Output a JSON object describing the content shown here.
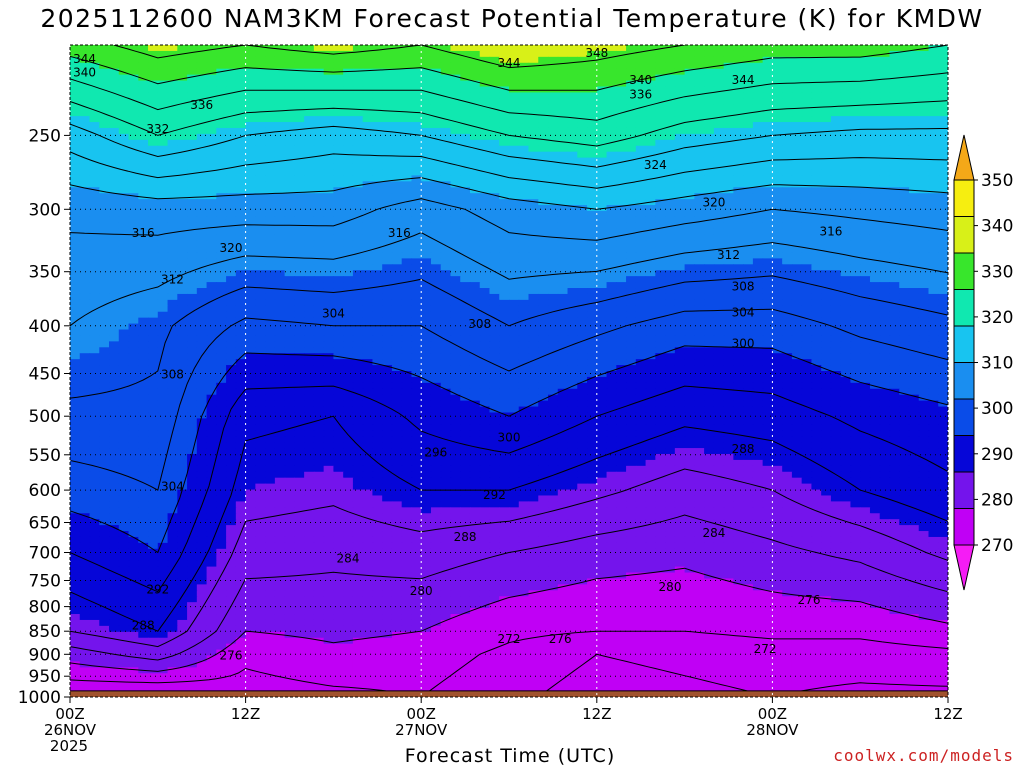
{
  "chart_data": {
    "type": "heatmap",
    "title": "2025112600 NAM3KM Forecast Potential Temperature (K) for KMDW",
    "xlabel": "Forecast Time (UTC)",
    "ylabel": "",
    "y_scale": "log-pressure",
    "y_axis_reversed": true,
    "ylim": [
      1000,
      200
    ],
    "y_ticks": [
      250,
      300,
      350,
      400,
      450,
      500,
      550,
      600,
      650,
      700,
      750,
      800,
      850,
      900,
      950,
      1000
    ],
    "x_ticks": [
      {
        "hours": 0,
        "label": "00Z",
        "sub1": "26NOV",
        "sub2": "2025"
      },
      {
        "hours": 12,
        "label": "12Z",
        "sub1": "",
        "sub2": ""
      },
      {
        "hours": 24,
        "label": "00Z",
        "sub1": "27NOV",
        "sub2": ""
      },
      {
        "hours": 36,
        "label": "12Z",
        "sub1": "",
        "sub2": ""
      },
      {
        "hours": 48,
        "label": "00Z",
        "sub1": "28NOV",
        "sub2": ""
      },
      {
        "hours": 60,
        "label": "12Z",
        "sub1": "",
        "sub2": ""
      }
    ],
    "xlim": [
      0,
      60
    ],
    "grid": true,
    "colorbar": {
      "position": "right",
      "levels": [
        270,
        280,
        290,
        300,
        310,
        320,
        330,
        340,
        350
      ],
      "colors": [
        "#f51cf5",
        "#c000f5",
        "#7414ec",
        "#0606d8",
        "#0a4ce8",
        "#1a8ef0",
        "#18c4f0",
        "#10e8b0",
        "#38e62c",
        "#d8f018",
        "#f6ee10",
        "#f4a818"
      ],
      "band_colors": [
        {
          "min": 260,
          "max": 270,
          "color": "#f51cf5"
        },
        {
          "min": 270,
          "max": 280,
          "color": "#c000f5"
        },
        {
          "min": 280,
          "max": 290,
          "color": "#7414ec"
        },
        {
          "min": 290,
          "max": 300,
          "color": "#0606d8"
        },
        {
          "min": 300,
          "max": 310,
          "color": "#0a4ce8"
        },
        {
          "min": 310,
          "max": 320,
          "color": "#1a8ef0"
        },
        {
          "min": 320,
          "max": 330,
          "color": "#18c4f0"
        },
        {
          "min": 330,
          "max": 340,
          "color": "#10e8b0"
        },
        {
          "min": 340,
          "max": 345,
          "color": "#38e62c"
        },
        {
          "min": 345,
          "max": 350,
          "color": "#d8f018"
        },
        {
          "min": 350,
          "max": 360,
          "color": "#f4a818"
        }
      ]
    },
    "contour_interval": 4,
    "ground_color": "#a0522d",
    "surface_pressure": 985,
    "profiles": [
      {
        "hours": 0,
        "theta_at": {
          "1000": 272,
          "900": 282,
          "850": 288,
          "700": 296,
          "600": 302,
          "500": 307,
          "400": 312,
          "300": 317,
          "250": 326,
          "200": 342
        }
      },
      {
        "hours": 6,
        "theta_at": {
          "1000": 271,
          "900": 286,
          "850": 292,
          "700": 300,
          "600": 304,
          "500": 307,
          "400": 309,
          "300": 318,
          "250": 332,
          "200": 346
        }
      },
      {
        "hours": 12,
        "theta_at": {
          "1000": 274,
          "900": 277,
          "850": 280,
          "700": 286,
          "600": 290,
          "500": 293,
          "400": 303,
          "300": 318,
          "250": 328,
          "200": 344
        }
      },
      {
        "hours": 18,
        "theta_at": {
          "1000": 275,
          "900": 279,
          "850": 281,
          "700": 285,
          "600": 289,
          "500": 292,
          "400": 304,
          "300": 318,
          "250": 326,
          "200": 346
        }
      },
      {
        "hours": 24,
        "theta_at": {
          "1000": 276,
          "900": 278,
          "850": 280,
          "700": 286,
          "600": 292,
          "500": 297,
          "400": 304,
          "300": 314,
          "250": 328,
          "200": 344
        }
      },
      {
        "hours": 30,
        "theta_at": {
          "1000": 273,
          "900": 275,
          "850": 277,
          "700": 284,
          "600": 292,
          "500": 300,
          "400": 308,
          "300": 318,
          "250": 332,
          "200": 348
        }
      },
      {
        "hours": 36,
        "theta_at": {
          "1000": 270,
          "900": 272,
          "850": 276,
          "700": 282,
          "600": 289,
          "500": 296,
          "400": 305,
          "300": 320,
          "250": 334,
          "200": 346
        }
      },
      {
        "hours": 42,
        "theta_at": {
          "1000": 271,
          "900": 273,
          "850": 276,
          "700": 281,
          "600": 286,
          "500": 293,
          "400": 302,
          "300": 318,
          "250": 330,
          "200": 344
        }
      },
      {
        "hours": 48,
        "theta_at": {
          "1000": 272,
          "900": 274,
          "850": 277,
          "700": 283,
          "600": 288,
          "500": 294,
          "400": 302,
          "300": 316,
          "250": 328,
          "200": 342
        }
      },
      {
        "hours": 54,
        "theta_at": {
          "1000": 271,
          "900": 274,
          "850": 277,
          "700": 285,
          "600": 292,
          "500": 297,
          "400": 305,
          "300": 317,
          "250": 327,
          "200": 342
        }
      },
      {
        "hours": 60,
        "theta_at": {
          "1000": 271,
          "900": 275,
          "850": 279,
          "700": 289,
          "600": 295,
          "500": 299,
          "400": 307,
          "300": 318,
          "250": 327,
          "200": 340
        }
      }
    ],
    "contour_labels": [
      {
        "value": "344",
        "hours": 1.0,
        "pressure": 207
      },
      {
        "value": "340",
        "hours": 1.0,
        "pressure": 214
      },
      {
        "value": "336",
        "hours": 9.0,
        "pressure": 232
      },
      {
        "value": "332",
        "hours": 6.0,
        "pressure": 246
      },
      {
        "value": "344",
        "hours": 30.0,
        "pressure": 209
      },
      {
        "value": "348",
        "hours": 36.0,
        "pressure": 204
      },
      {
        "value": "340",
        "hours": 39.0,
        "pressure": 218
      },
      {
        "value": "336",
        "hours": 39.0,
        "pressure": 226
      },
      {
        "value": "344",
        "hours": 46.0,
        "pressure": 218
      },
      {
        "value": "324",
        "hours": 40.0,
        "pressure": 269
      },
      {
        "value": "320",
        "hours": 44.0,
        "pressure": 295
      },
      {
        "value": "316",
        "hours": 5.0,
        "pressure": 318
      },
      {
        "value": "320",
        "hours": 11.0,
        "pressure": 330
      },
      {
        "value": "316",
        "hours": 22.5,
        "pressure": 318
      },
      {
        "value": "316",
        "hours": 52.0,
        "pressure": 317
      },
      {
        "value": "312",
        "hours": 45.0,
        "pressure": 336
      },
      {
        "value": "312",
        "hours": 7.0,
        "pressure": 357
      },
      {
        "value": "308",
        "hours": 46.0,
        "pressure": 363
      },
      {
        "value": "304",
        "hours": 18.0,
        "pressure": 388
      },
      {
        "value": "308",
        "hours": 28.0,
        "pressure": 398
      },
      {
        "value": "304",
        "hours": 46.0,
        "pressure": 387
      },
      {
        "value": "300",
        "hours": 46.0,
        "pressure": 418
      },
      {
        "value": "308",
        "hours": 7.0,
        "pressure": 451
      },
      {
        "value": "300",
        "hours": 30.0,
        "pressure": 527
      },
      {
        "value": "296",
        "hours": 25.0,
        "pressure": 547
      },
      {
        "value": "288",
        "hours": 46.0,
        "pressure": 542
      },
      {
        "value": "304",
        "hours": 7.0,
        "pressure": 595
      },
      {
        "value": "292",
        "hours": 29.0,
        "pressure": 607
      },
      {
        "value": "288",
        "hours": 27.0,
        "pressure": 674
      },
      {
        "value": "284",
        "hours": 44.0,
        "pressure": 667
      },
      {
        "value": "284",
        "hours": 19.0,
        "pressure": 710
      },
      {
        "value": "292",
        "hours": 6.0,
        "pressure": 767
      },
      {
        "value": "280",
        "hours": 24.0,
        "pressure": 770
      },
      {
        "value": "280",
        "hours": 41.0,
        "pressure": 762
      },
      {
        "value": "276",
        "hours": 50.5,
        "pressure": 787
      },
      {
        "value": "288",
        "hours": 5.0,
        "pressure": 838
      },
      {
        "value": "272",
        "hours": 30.0,
        "pressure": 867
      },
      {
        "value": "276",
        "hours": 33.5,
        "pressure": 867
      },
      {
        "value": "272",
        "hours": 47.5,
        "pressure": 888
      },
      {
        "value": "276",
        "hours": 11.0,
        "pressure": 903
      }
    ]
  },
  "credit": "coolwx.com/models"
}
